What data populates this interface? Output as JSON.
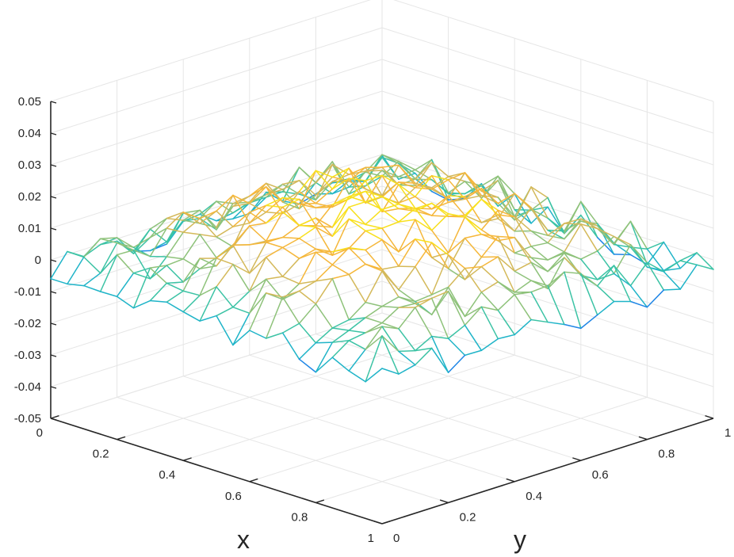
{
  "chart_data": {
    "type": "surface-mesh",
    "view": "3d",
    "xlabel": "x",
    "ylabel": "y",
    "zlabel": "",
    "xlim": [
      0,
      1
    ],
    "ylim": [
      0,
      1
    ],
    "zlim": [
      -0.05,
      0.05
    ],
    "x_ticks": [
      "0",
      "0.2",
      "0.4",
      "0.6",
      "0.8",
      "1"
    ],
    "y_ticks": [
      "0",
      "0.2",
      "0.4",
      "0.6",
      "0.8",
      "1"
    ],
    "z_ticks": [
      "-0.05",
      "-0.04",
      "-0.03",
      "-0.02",
      "-0.01",
      "0",
      "0.01",
      "0.02",
      "0.03",
      "0.04",
      "0.05"
    ],
    "grid": true,
    "colormap": [
      "#0a4fd1",
      "#1f86e6",
      "#1fb4c8",
      "#3cc3a5",
      "#8ec27a",
      "#d4b95a",
      "#f5b73a",
      "#f8e01e"
    ],
    "mesh_resolution": 20,
    "surface": {
      "description": "noisy near-zero surface, range approx -0.015 to 0.02",
      "z_min": -0.015,
      "z_max": 0.02
    }
  }
}
